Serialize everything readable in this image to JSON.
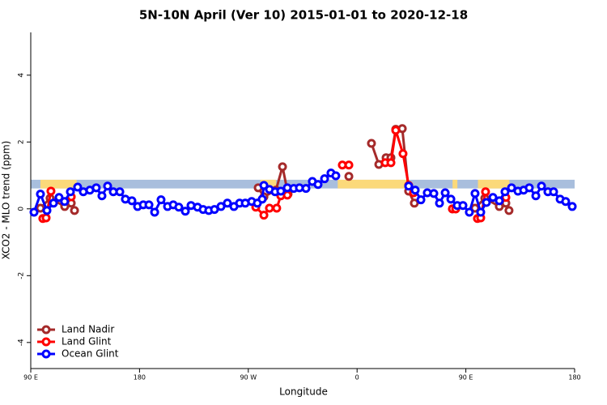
{
  "chart_data": {
    "type": "line",
    "title": "5N-10N April (Ver 10)   2015-01-01 to 2020-12-18",
    "x_label": "Longitude",
    "y_label": "XCO2 - MLO trend (ppm)",
    "xlim": [
      90,
      540
    ],
    "ylim": [
      -4.78,
      5.28
    ],
    "xticks": [
      {
        "value": 90,
        "label": "90 E"
      },
      {
        "value": 180,
        "label": "180"
      },
      {
        "value": 270,
        "label": "90 W"
      },
      {
        "value": 360,
        "label": "0"
      },
      {
        "value": 450,
        "label": "90 E"
      },
      {
        "value": 540,
        "label": "180"
      }
    ],
    "yticks": [
      -4,
      -2,
      0,
      2,
      4
    ],
    "band": [
      0.61,
      0.87
    ],
    "band_color": "#a8bedd",
    "land_color": "#fbd97a",
    "land_spans": [
      [
        98,
        128
      ],
      [
        280,
        293
      ],
      [
        344,
        403
      ],
      [
        439,
        443
      ],
      [
        460,
        486
      ]
    ],
    "legend": "bottom-left",
    "series": [
      {
        "name": "Land Nadir",
        "color": "#a52a2a",
        "x": [
          98,
          106,
          118.1,
          123.5,
          126.2,
          null,
          278.2,
          282.9,
          292.9,
          298.3,
          302.9,
          null,
          353.2,
          null,
          371.9,
          378,
          384,
          388,
          392,
          397.4,
          402.7,
          407.4,
          null,
          438.9,
          441.6,
          null,
          457.6,
          465.7,
          477.7,
          483.1,
          485.7
        ],
        "values": [
          0.02,
          0.32,
          0.07,
          0.17,
          -0.05,
          null,
          0.63,
          0.36,
          0.56,
          1.26,
          0.44,
          null,
          0.97,
          null,
          1.96,
          1.33,
          1.53,
          1.53,
          2.38,
          2.4,
          0.53,
          0.17,
          null,
          0,
          0,
          null,
          0.02,
          0.32,
          0.07,
          0.17,
          -0.05
        ]
      },
      {
        "name": "Land Glint",
        "color": "#ff0000",
        "x": [
          100,
          102.7,
          106.7,
          null,
          123.5,
          null,
          276.2,
          282.9,
          287.5,
          293.5,
          296.9,
          302.3,
          null,
          347.8,
          353.2,
          null,
          383.3,
          388,
          392,
          398,
          402.7,
          406.7,
          null,
          438.9,
          441.6,
          null,
          459.6,
          462.3,
          466.3,
          null,
          483.1
        ],
        "values": [
          -0.29,
          -0.27,
          0.53,
          null,
          0.36,
          null,
          0.05,
          -0.19,
          0.02,
          0.02,
          0.39,
          0.41,
          null,
          1.31,
          1.31,
          null,
          1.38,
          1.38,
          2.35,
          1.65,
          0.7,
          0.48,
          null,
          0,
          0,
          null,
          -0.29,
          -0.27,
          0.51,
          null,
          0.34
        ]
      },
      {
        "name": "Ocean Glint",
        "color": "#0000ff",
        "x": [
          92.7,
          98,
          103.4,
          108.8,
          113.4,
          118,
          122.8,
          128.8,
          133.5,
          138.9,
          144.2,
          148.9,
          153.6,
          158.3,
          163.7,
          168.3,
          173.7,
          178.4,
          183.1,
          187.8,
          192.5,
          197.8,
          203.2,
          207.9,
          212.5,
          217.9,
          222.6,
          228,
          232.6,
          237.3,
          242,
          247.4,
          252.7,
          258.1,
          262.8,
          267.5,
          272.8,
          277.5,
          281.5,
          282.9,
          287.5,
          292.2,
          296.9,
          302.3,
          307.6,
          312.3,
          317.7,
          323,
          327.7,
          333.1,
          338.4,
          342.4,
          null,
          402.7,
          408.1,
          412.8,
          418.1,
          423.5,
          428.2,
          432.9,
          437.6,
          442.9,
          447.6,
          452.9,
          457.6,
          462.3,
          467,
          472.4,
          477.7,
          482.4,
          487.8,
          493.1,
          497.8,
          502.5,
          507.9,
          512.6,
          517.9,
          522.6,
          528,
          532.6,
          538
        ],
        "values": [
          -0.1,
          0.44,
          -0.05,
          0.17,
          0.34,
          0.22,
          0.51,
          0.65,
          0.51,
          0.56,
          0.63,
          0.39,
          0.68,
          0.51,
          0.51,
          0.29,
          0.24,
          0.07,
          0.12,
          0.12,
          -0.1,
          0.27,
          0.07,
          0.12,
          0.05,
          -0.07,
          0.1,
          0.05,
          -0.02,
          -0.05,
          -0.02,
          0.07,
          0.17,
          0.07,
          0.17,
          0.17,
          0.22,
          0.17,
          0.29,
          0.7,
          0.58,
          0.51,
          0.53,
          0.63,
          0.61,
          0.63,
          0.61,
          0.82,
          0.73,
          0.9,
          1.07,
          0.99,
          null,
          0.68,
          0.56,
          0.27,
          0.48,
          0.46,
          0.17,
          0.48,
          0.29,
          0.1,
          0.1,
          -0.1,
          0.46,
          -0.1,
          0.19,
          0.34,
          0.24,
          0.51,
          0.63,
          0.53,
          0.56,
          0.63,
          0.39,
          0.68,
          0.51,
          0.51,
          0.29,
          0.22,
          0.07
        ]
      }
    ]
  }
}
